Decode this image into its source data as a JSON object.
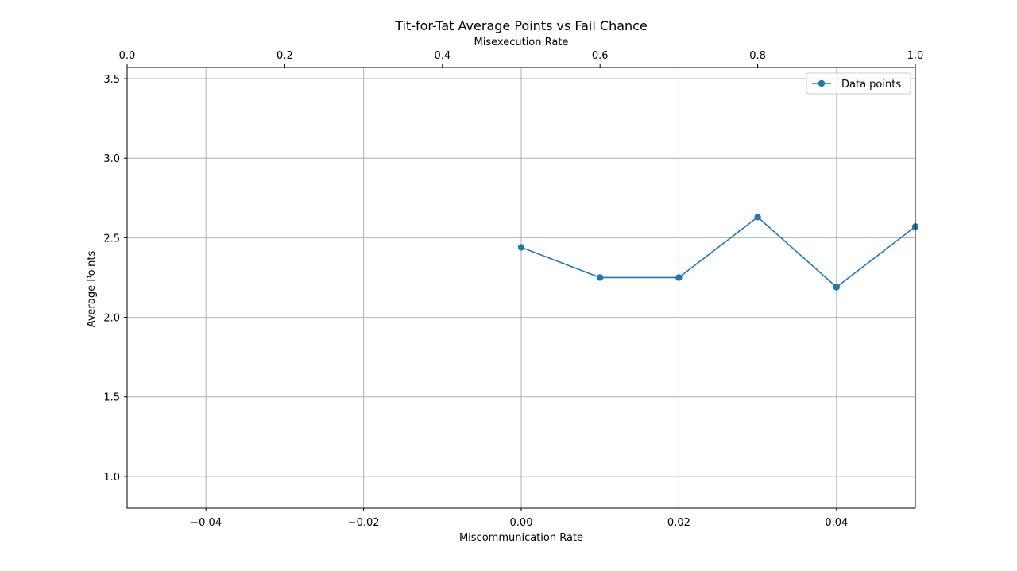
{
  "chart_data": {
    "type": "line",
    "title": "Tit-for-Tat Average Points vs Fail Chance",
    "xlabel": "Miscommunication Rate",
    "x2label": "Misexecution Rate",
    "ylabel": "Average Points",
    "xlim": [
      -0.05,
      0.05
    ],
    "x2lim": [
      0.0,
      1.0
    ],
    "ylim": [
      0.8,
      3.57
    ],
    "x_ticks": [
      -0.04,
      -0.02,
      0.0,
      0.02,
      0.04
    ],
    "x_tick_labels": [
      "−0.04",
      "−0.02",
      "0.00",
      "0.02",
      "0.04"
    ],
    "x2_ticks": [
      0.0,
      0.2,
      0.4,
      0.6,
      0.8,
      1.0
    ],
    "x2_tick_labels": [
      "0.0",
      "0.2",
      "0.4",
      "0.6",
      "0.8",
      "1.0"
    ],
    "y_ticks": [
      1.0,
      1.5,
      2.0,
      2.5,
      3.0,
      3.5
    ],
    "y_tick_labels": [
      "1.0",
      "1.5",
      "2.0",
      "2.5",
      "3.0",
      "3.5"
    ],
    "grid": true,
    "legend_position": "top-right",
    "series": [
      {
        "name": "Data points",
        "color": "#1f77b4",
        "marker": "circle",
        "x": [
          0.0,
          0.01,
          0.02,
          0.03,
          0.04,
          0.05
        ],
        "y": [
          2.44,
          2.25,
          2.25,
          2.63,
          2.19,
          2.57
        ]
      }
    ]
  }
}
